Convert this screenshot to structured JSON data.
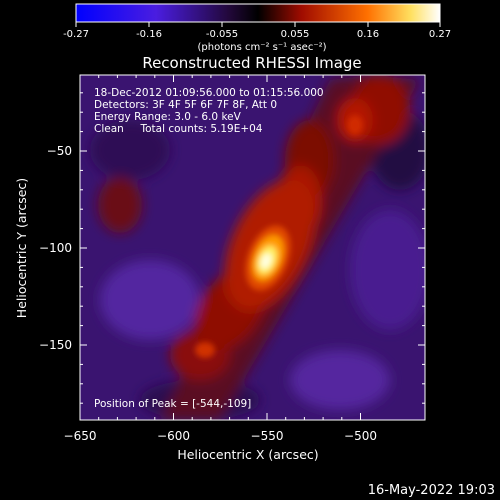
{
  "chart_data": {
    "type": "heatmap",
    "title": "Reconstructed RHESSI Image",
    "xlabel": "Heliocentric X (arcsec)",
    "ylabel": "Heliocentric Y (arcsec)",
    "xlim": [
      -650,
      -545
    ],
    "ylim": [
      -200,
      -10
    ],
    "x_ticks": [
      -650,
      -600,
      -550,
      -500
    ],
    "y_ticks": [
      -50,
      -100,
      -150
    ],
    "colorbar": {
      "range": [
        -0.27,
        0.27
      ],
      "ticks": [
        "-0.27",
        "-0.16",
        "-0.055",
        "0.055",
        "0.16",
        "0.27"
      ],
      "label": "(photons cm⁻² s⁻¹ asec⁻²)",
      "colors": [
        "#0000ff",
        "#6a1fb0",
        "#000000",
        "#a01000",
        "#ff7a00",
        "#ffff90",
        "#ffffff"
      ]
    },
    "annotations": {
      "line1": "18-Dec-2012 01:09:56.000 to 01:15:56.000",
      "line2": "Detectors: 3F 4F 5F 6F 7F 8F, Att 0",
      "line3": "Energy Range: 3.0 - 6.0 keV",
      "line4": "Clean     Total counts: 5.19E+04",
      "peak": "Position of Peak = [-544,-109]"
    },
    "peak_position": [
      -544,
      -109
    ],
    "timestamp": "16-May-2022 19:03"
  }
}
